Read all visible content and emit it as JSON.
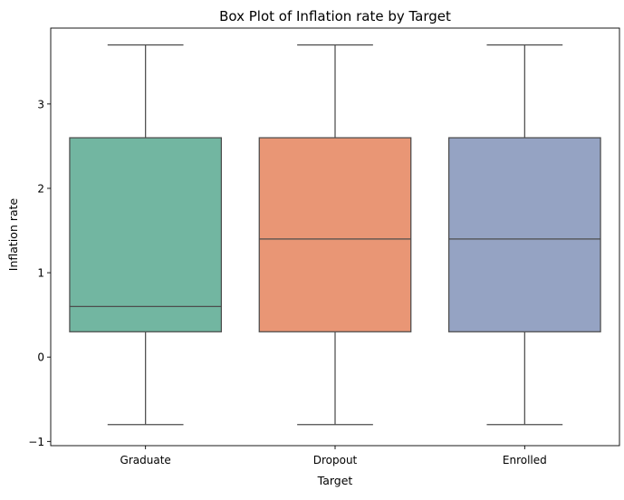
{
  "chart_data": {
    "type": "box",
    "title": "Box Plot of Inflation rate by Target",
    "xlabel": "Target",
    "ylabel": "Inflation rate",
    "ylim": [
      -1.05,
      3.9
    ],
    "yticks": [
      -1,
      0,
      1,
      2,
      3
    ],
    "ytick_labels": [
      "−1",
      "0",
      "1",
      "2",
      "3"
    ],
    "grid": false,
    "categories": [
      "Graduate",
      "Dropout",
      "Enrolled"
    ],
    "boxes": [
      {
        "category": "Graduate",
        "whisker_low": -0.8,
        "q1": 0.3,
        "median": 0.6,
        "q3": 2.6,
        "whisker_high": 3.7,
        "color": "#72B6A1"
      },
      {
        "category": "Dropout",
        "whisker_low": -0.8,
        "q1": 0.3,
        "median": 1.4,
        "q3": 2.6,
        "whisker_high": 3.7,
        "color": "#E99675"
      },
      {
        "category": "Enrolled",
        "whisker_low": -0.8,
        "q1": 0.3,
        "median": 1.4,
        "q3": 2.6,
        "whisker_high": 3.7,
        "color": "#95A3C3"
      }
    ],
    "line_color": "#4d4d4d"
  }
}
